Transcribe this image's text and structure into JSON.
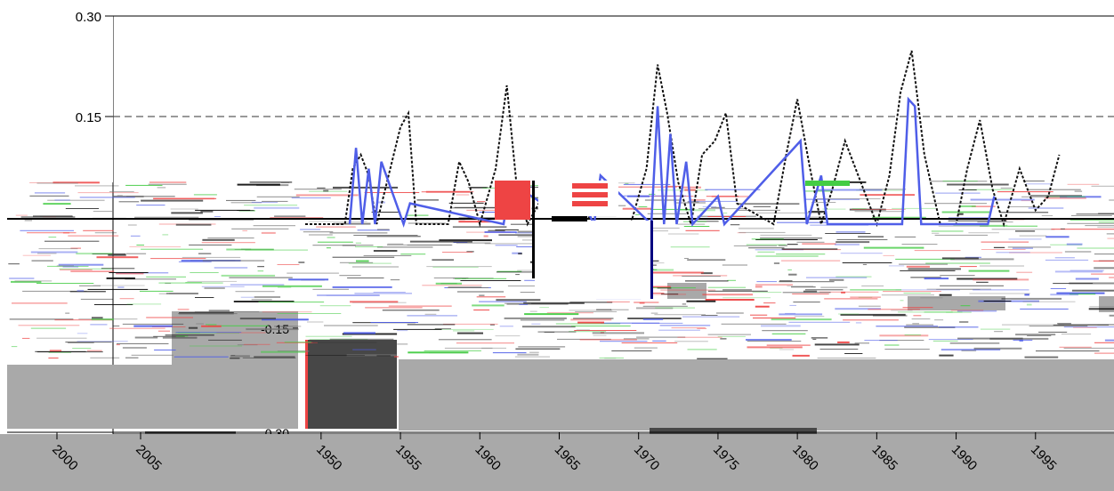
{
  "chart_data": {
    "type": "line",
    "title": "",
    "xlabel": "",
    "ylabel": "",
    "x_tick_labels": [
      "1950",
      "1955",
      "1960",
      "1965",
      "1970",
      "1975",
      "1980",
      "1985",
      "1990",
      "1995"
    ],
    "x_left_tick_labels": [
      "2000",
      "2005"
    ],
    "y_tick_labels": [
      "0.30",
      "0.15",
      "-0.15",
      "-0.30"
    ],
    "ylim": [
      -0.3,
      0.3
    ],
    "xlim": [
      1949,
      2000
    ],
    "grid": "dashed horizontal lines at 0.15 and -0.15",
    "colors": {
      "dashed_series": "#111111",
      "blue_series": "#4f5ee8",
      "gray_band": "#a9a9a9",
      "dark_band": "#474747",
      "red_accent": "#ee4444",
      "green_accent": "#44cc44"
    },
    "series": [
      {
        "style": "dashed-black",
        "x": [
          1949,
          1951.5,
          1952,
          1952.5,
          1953.0,
          1953.5,
          1955.0,
          1955.5,
          1956,
          1958.0,
          1958.7,
          1959.3,
          1960.0,
          1961.0,
          1961.7,
          1962.3,
          1963,
          1964.2,
          1964.8,
          1965.5,
          1966.3,
          1967.0,
          1969.5,
          1970.5,
          1971.2,
          1971.8,
          1972.5,
          1973.3,
          1974.0,
          1974.8,
          1975.5,
          1976.2,
          1978.5,
          1979.3,
          1980.0,
          1980.8,
          1981.5,
          1982.2,
          1983.0,
          1985.0,
          1985.8,
          1986.5,
          1987.2,
          1988.0,
          1989.0,
          1990.0,
          1990.7,
          1991.5,
          1992.3,
          1993.0,
          1994.0,
          1995.0,
          1995.8,
          1996.5
        ],
        "y": [
          0.0,
          0.0,
          0.08,
          0.1,
          0.07,
          0.0,
          0.14,
          0.16,
          0.0,
          0.0,
          0.09,
          0.06,
          0.0,
          0.08,
          0.2,
          0.06,
          0.0,
          0.05,
          0.05,
          0.0,
          0.05,
          0.0,
          0.0,
          0.08,
          0.23,
          0.16,
          0.06,
          0.0,
          0.1,
          0.12,
          0.16,
          0.03,
          0.0,
          0.1,
          0.18,
          0.08,
          0.0,
          0.05,
          0.12,
          0.0,
          0.07,
          0.19,
          0.25,
          0.1,
          0.0,
          0.0,
          0.08,
          0.15,
          0.05,
          0.0,
          0.08,
          0.02,
          0.04,
          0.1
        ]
      },
      {
        "style": "solid-blue",
        "x": [
          1951.8,
          1952.2,
          1952.6,
          1953.0,
          1953.4,
          1953.8,
          1955.2,
          1955.6,
          1961.5,
          1961.9,
          1966.0,
          1966.3,
          1967.2,
          1967.6,
          1970.8,
          1971.2,
          1971.6,
          1972.0,
          1972.4,
          1973.0,
          1973.4,
          1975.0,
          1975.4,
          1980.2,
          1980.6,
          1981.5,
          1981.9,
          1986.6,
          1987.0,
          1987.4,
          1987.8,
          1992.0,
          1992.4
        ],
        "y": [
          0.0,
          0.11,
          0.0,
          0.08,
          0.0,
          0.09,
          0.0,
          0.03,
          0.0,
          0.06,
          0.0,
          0.04,
          0.0,
          0.07,
          0.0,
          0.17,
          0.0,
          0.13,
          0.0,
          0.09,
          0.0,
          0.04,
          0.0,
          0.12,
          0.0,
          0.07,
          0.0,
          0.0,
          0.18,
          0.17,
          0.0,
          0.0,
          0.04
        ]
      }
    ]
  }
}
